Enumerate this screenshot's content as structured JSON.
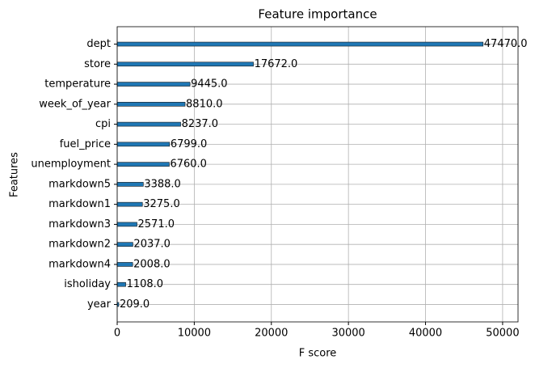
{
  "chart_data": {
    "type": "barh",
    "title": "Feature importance",
    "xlabel": "F score",
    "ylabel": "Features",
    "categories": [
      "dept",
      "store",
      "temperature",
      "week_of_year",
      "cpi",
      "fuel_price",
      "unemployment",
      "markdown5",
      "markdown1",
      "markdown3",
      "markdown2",
      "markdown4",
      "isholiday",
      "year"
    ],
    "values": [
      47470,
      17672,
      9445,
      8810,
      8237,
      6799,
      6760,
      3388,
      3275,
      2571,
      2037,
      2008,
      1108,
      209
    ],
    "value_labels": [
      "47470.0",
      "17672.0",
      "9445.0",
      "8810.0",
      "8237.0",
      "6799.0",
      "6760.0",
      "3388.0",
      "3275.0",
      "2571.0",
      "2037.0",
      "2008.0",
      "1108.0",
      "209.0"
    ],
    "color": "#1f77b4",
    "xlim": [
      0,
      52000
    ],
    "xticks": [
      0,
      10000,
      20000,
      30000,
      40000,
      50000
    ],
    "grid": true
  }
}
